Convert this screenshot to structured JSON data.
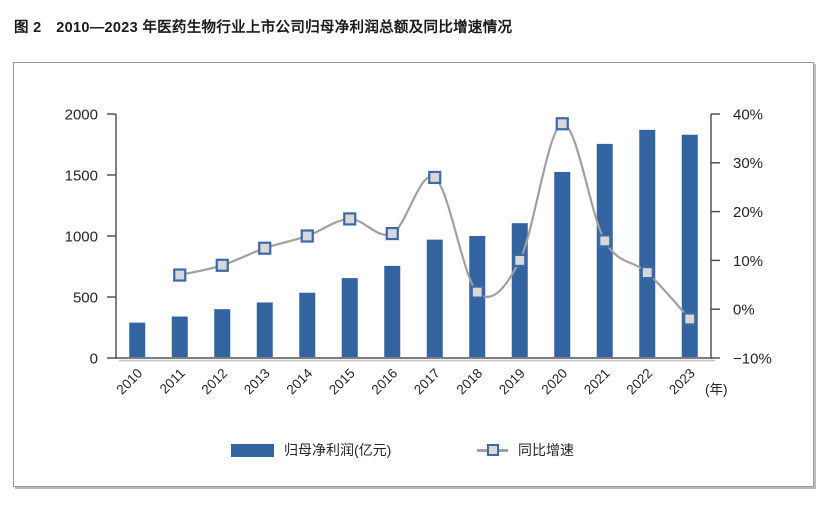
{
  "page": {
    "title": "图 2　2010—2023 年医药生物行业上市公司归母净利润总额及同比增速情况"
  },
  "chart_data": {
    "type": "combo-bar-line",
    "categories": [
      "2010",
      "2011",
      "2012",
      "2013",
      "2014",
      "2015",
      "2016",
      "2017",
      "2018",
      "2019",
      "2020",
      "2021",
      "2022",
      "2023"
    ],
    "x_unit_label": "(年)",
    "series": [
      {
        "name": "归母净利润(亿元)",
        "type": "bar",
        "yaxis": "left",
        "color": "#3464A0",
        "values": [
          290,
          340,
          400,
          455,
          535,
          655,
          755,
          970,
          1000,
          1105,
          1525,
          1755,
          1870,
          1830
        ]
      },
      {
        "name": "同比增速",
        "type": "line",
        "yaxis": "right",
        "line_color": "#A0A0A0",
        "marker_fill": "#D8D8D8",
        "marker_border": "#3E68A6",
        "values_percent": [
          null,
          7,
          9,
          12.5,
          15,
          18.5,
          15.5,
          27,
          3.5,
          10,
          38,
          14,
          7.5,
          -2
        ]
      }
    ],
    "left_axis": {
      "min": 0,
      "max": 2000,
      "tick_labels": [
        "0",
        "500",
        "1000",
        "1500",
        "2000"
      ]
    },
    "right_axis": {
      "min": -10,
      "max": 40,
      "tick_labels": [
        "−10%",
        "0%",
        "10%",
        "20%",
        "30%",
        "40%"
      ]
    },
    "grid": false,
    "legend_position": "bottom"
  }
}
